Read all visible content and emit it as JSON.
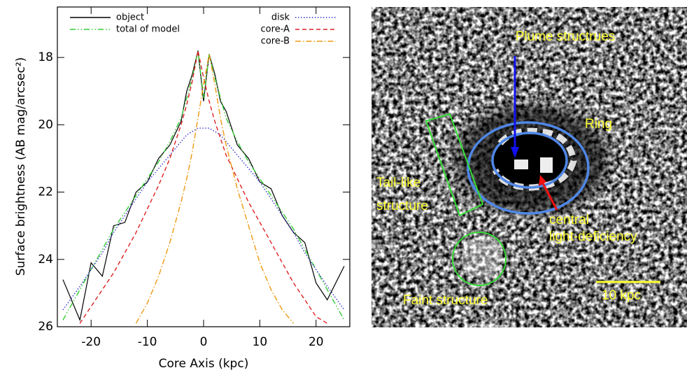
{
  "chart_data": {
    "type": "line",
    "x_label": "Core Axis (kpc)",
    "y_label": "Surface brightness (AB mag/arcsec²)",
    "x": [
      -25,
      -22,
      -20,
      -18,
      -16,
      -14,
      -12,
      -10,
      -8,
      -6,
      -4,
      -3,
      -2,
      -1,
      0,
      1,
      2,
      3,
      4,
      6,
      8,
      10,
      12,
      14,
      16,
      18,
      20,
      22,
      25
    ],
    "xlim": [
      -26,
      26
    ],
    "xticks": [
      -20,
      -10,
      0,
      10,
      20
    ],
    "ylim": [
      26,
      16.5
    ],
    "yticks": [
      18,
      20,
      22,
      24,
      26
    ],
    "series": [
      {
        "name": "object",
        "color": "#000000",
        "line_style": "solid",
        "values": [
          24.6,
          25.8,
          24.1,
          24.5,
          23.0,
          22.9,
          22.0,
          21.7,
          21.0,
          20.6,
          19.9,
          19.0,
          18.5,
          17.8,
          19.3,
          17.9,
          18.5,
          19.3,
          19.6,
          20.6,
          21.0,
          21.7,
          21.9,
          22.7,
          23.2,
          23.5,
          24.7,
          25.2,
          24.2
        ]
      },
      {
        "name": "total of model",
        "color": "#33cc33",
        "line_style": "dashdotdot",
        "values": [
          25.8,
          24.9,
          24.3,
          23.7,
          23.1,
          22.6,
          22.1,
          21.6,
          21.1,
          20.5,
          19.8,
          19.2,
          18.6,
          17.8,
          19.2,
          17.9,
          18.6,
          19.2,
          19.8,
          20.5,
          21.1,
          21.6,
          22.1,
          22.6,
          23.1,
          23.7,
          24.3,
          24.9,
          25.8
        ]
      },
      {
        "name": "disk",
        "color": "#3333cc",
        "line_style": "dotted",
        "values": [
          25.5,
          24.8,
          24.3,
          23.8,
          23.2,
          22.7,
          22.2,
          21.7,
          21.3,
          20.9,
          20.5,
          20.3,
          20.2,
          20.1,
          20.1,
          20.1,
          20.2,
          20.3,
          20.5,
          20.9,
          21.3,
          21.7,
          22.2,
          22.7,
          23.2,
          23.8,
          24.3,
          24.8,
          25.5
        ]
      },
      {
        "name": "core-A",
        "color": "#dd2222",
        "line_style": "dashed",
        "values": [
          null,
          25.9,
          25.4,
          24.9,
          24.4,
          23.8,
          23.2,
          22.5,
          21.8,
          21.0,
          20.0,
          19.4,
          18.7,
          17.8,
          18.6,
          19.3,
          19.9,
          20.4,
          20.9,
          21.6,
          22.3,
          22.9,
          23.5,
          24.1,
          24.7,
          25.2,
          25.7,
          25.9,
          null
        ]
      },
      {
        "name": "core-B",
        "color": "#ee9911",
        "line_style": "dashdot",
        "values": [
          null,
          null,
          null,
          null,
          null,
          null,
          25.9,
          25.3,
          24.5,
          23.5,
          22.3,
          21.6,
          20.8,
          19.8,
          18.8,
          17.9,
          18.8,
          19.8,
          20.6,
          21.9,
          23.0,
          24.1,
          24.9,
          25.5,
          25.9,
          null,
          null,
          null,
          null
        ]
      }
    ],
    "image_annotations": [
      "Plume structrues",
      "Ring",
      [
        "Tail-like",
        "structure"
      ],
      [
        "central",
        "light-deficiency"
      ],
      "Faint structure",
      "10 kpc"
    ]
  }
}
